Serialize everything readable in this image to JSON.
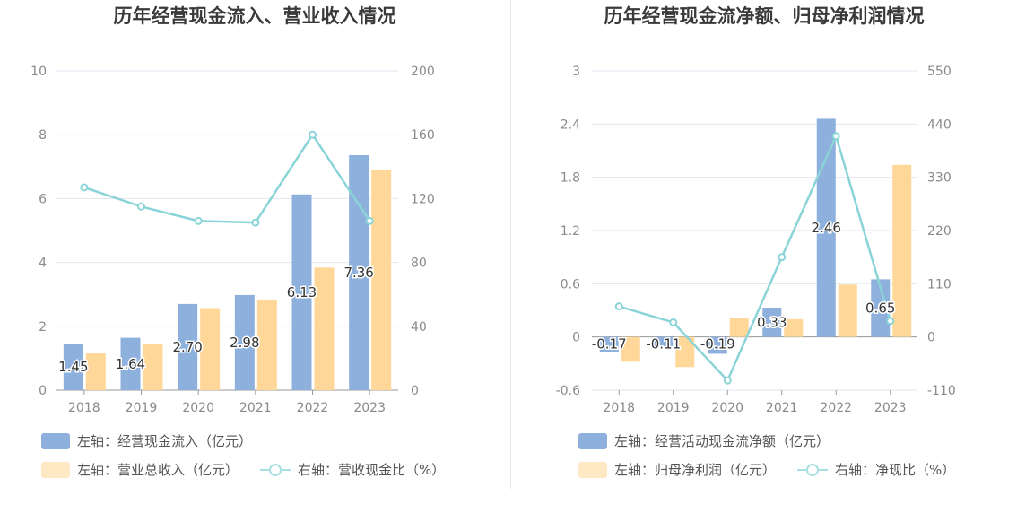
{
  "colors": {
    "bar_primary": "#8eb0dd",
    "bar_secondary": "#ffd899",
    "line": "#8ad4d8",
    "legend_line": "#a8dfe3",
    "legend_secondary": "#ffe8c4",
    "grid": "#e3e6f0",
    "axis_text": "#8a8a8a"
  },
  "chart_data": [
    {
      "type": "bar",
      "title": "历年经营现金流入、营业收入情况",
      "categories": [
        "2018",
        "2019",
        "2020",
        "2021",
        "2022",
        "2023"
      ],
      "left_axis": {
        "ylim": [
          0,
          10
        ],
        "ticks": [
          "0",
          "2",
          "4",
          "6",
          "8",
          "10"
        ]
      },
      "right_axis": {
        "ylim": [
          0,
          200
        ],
        "ticks": [
          "0",
          "40",
          "80",
          "120",
          "160",
          "200"
        ]
      },
      "series": [
        {
          "name": "左轴：经营现金流入（亿元）",
          "axis": "left",
          "kind": "bar",
          "values": [
            1.45,
            1.64,
            2.7,
            2.98,
            6.13,
            7.36
          ],
          "labels": [
            "1.45",
            "1.64",
            "2.70",
            "2.98",
            "6.13",
            "7.36"
          ]
        },
        {
          "name": "左轴：营业总收入（亿元）",
          "axis": "left",
          "kind": "bar",
          "values": [
            1.15,
            1.45,
            2.57,
            2.84,
            3.84,
            6.9
          ]
        },
        {
          "name": "右轴：营收现金比（%）",
          "axis": "right",
          "kind": "line",
          "values": [
            127,
            115,
            106,
            105,
            160,
            106
          ]
        }
      ]
    },
    {
      "type": "bar",
      "title": "历年经营现金流净额、归母净利润情况",
      "categories": [
        "2018",
        "2019",
        "2020",
        "2021",
        "2022",
        "2023"
      ],
      "left_axis": {
        "ylim": [
          -0.6,
          3
        ],
        "ticks": [
          "-0.6",
          "0",
          "0.6",
          "1.2",
          "1.8",
          "2.4",
          "3"
        ]
      },
      "right_axis": {
        "ylim": [
          -110,
          550
        ],
        "ticks": [
          "-110",
          "0",
          "110",
          "220",
          "330",
          "440",
          "550"
        ]
      },
      "series": [
        {
          "name": "左轴：经营活动现金流净额（亿元）",
          "axis": "left",
          "kind": "bar",
          "values": [
            -0.17,
            -0.11,
            -0.19,
            0.33,
            2.46,
            0.65
          ],
          "labels": [
            "-0.17",
            "-0.11",
            "-0.19",
            "0.33",
            "2.46",
            "0.65"
          ]
        },
        {
          "name": "左轴：归母净利润（亿元）",
          "axis": "left",
          "kind": "bar",
          "values": [
            -0.28,
            -0.34,
            0.21,
            0.2,
            0.59,
            1.94
          ]
        },
        {
          "name": "右轴：净现比（%）",
          "axis": "right",
          "kind": "line",
          "values": [
            63,
            30,
            -90,
            165,
            415,
            33
          ]
        }
      ]
    }
  ]
}
